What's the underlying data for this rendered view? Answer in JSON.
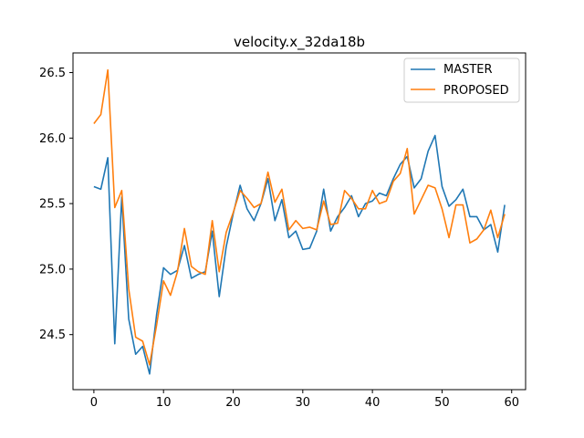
{
  "chart_data": {
    "type": "line",
    "title": "velocity.x_32da18b",
    "xlabel": "",
    "ylabel": "",
    "xlim": [
      -3,
      62
    ],
    "ylim": [
      24.08,
      26.65
    ],
    "xticks": [
      0,
      10,
      20,
      30,
      40,
      50,
      60
    ],
    "yticks": [
      24.5,
      25.0,
      25.5,
      26.0,
      26.5
    ],
    "ytick_labels": [
      "24.5",
      "25.0",
      "25.5",
      "26.0",
      "26.5"
    ],
    "xtick_labels": [
      "0",
      "10",
      "20",
      "30",
      "40",
      "50",
      "60"
    ],
    "legend_position": "top-right",
    "grid": false,
    "x": [
      0,
      1,
      2,
      3,
      4,
      5,
      6,
      7,
      8,
      9,
      10,
      11,
      12,
      13,
      14,
      15,
      16,
      17,
      18,
      19,
      20,
      21,
      22,
      23,
      24,
      25,
      26,
      27,
      28,
      29,
      30,
      31,
      32,
      33,
      34,
      35,
      36,
      37,
      38,
      39,
      40,
      41,
      42,
      43,
      44,
      45,
      46,
      47,
      48,
      49,
      50,
      51,
      52,
      53,
      54,
      55,
      56,
      57,
      58,
      59
    ],
    "series": [
      {
        "name": "MASTER",
        "color": "#1f77b4",
        "values": [
          25.63,
          25.61,
          25.85,
          24.43,
          25.55,
          24.62,
          24.35,
          24.41,
          24.2,
          24.65,
          25.01,
          24.96,
          24.99,
          25.18,
          24.93,
          24.96,
          24.98,
          25.29,
          24.79,
          25.17,
          25.42,
          25.64,
          25.46,
          25.37,
          25.5,
          25.69,
          25.37,
          25.53,
          25.24,
          25.29,
          25.15,
          25.16,
          25.29,
          25.61,
          25.29,
          25.4,
          25.47,
          25.56,
          25.4,
          25.5,
          25.52,
          25.58,
          25.56,
          25.69,
          25.8,
          25.86,
          25.62,
          25.69,
          25.9,
          26.02,
          25.63,
          25.48,
          25.53,
          25.61,
          25.4,
          25.4,
          25.3,
          25.34,
          25.13,
          25.49
        ]
      },
      {
        "name": "PROPOSED",
        "color": "#ff7f0e",
        "values": [
          26.11,
          26.18,
          26.52,
          25.47,
          25.6,
          24.85,
          24.48,
          24.45,
          24.27,
          24.57,
          24.91,
          24.8,
          24.98,
          25.31,
          25.02,
          24.98,
          24.96,
          25.37,
          24.98,
          25.28,
          25.43,
          25.6,
          25.54,
          25.47,
          25.5,
          25.74,
          25.51,
          25.61,
          25.3,
          25.37,
          25.31,
          25.32,
          25.3,
          25.52,
          25.34,
          25.35,
          25.6,
          25.54,
          25.46,
          25.46,
          25.6,
          25.5,
          25.52,
          25.67,
          25.73,
          25.92,
          25.42,
          25.53,
          25.64,
          25.62,
          25.46,
          25.24,
          25.49,
          25.49,
          25.2,
          25.23,
          25.3,
          25.45,
          25.24,
          25.42
        ]
      }
    ]
  }
}
